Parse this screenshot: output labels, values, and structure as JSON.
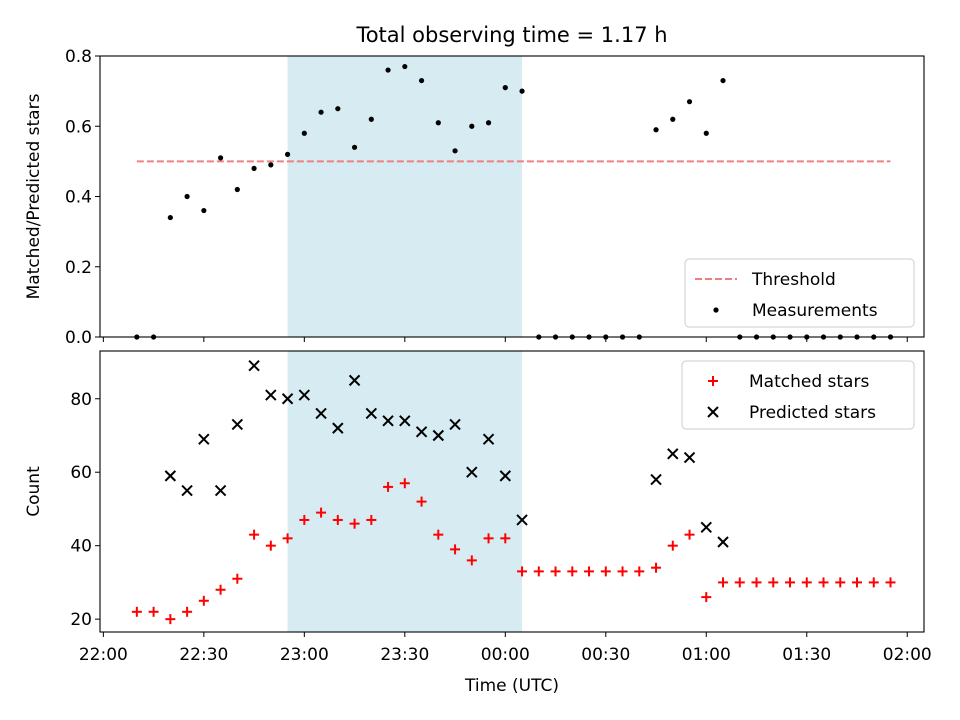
{
  "chart_data": [
    {
      "type": "scatter",
      "title": "Total observing time = 1.17 h",
      "xlabel": "",
      "ylabel": "Matched/Predicted stars",
      "ylim": [
        0,
        0.8
      ],
      "xlim": [
        "21:59",
        "02:05"
      ],
      "y_ticks": [
        "0.0",
        "0.2",
        "0.4",
        "0.6",
        "0.8"
      ],
      "shaded_interval": {
        "start": "22:55",
        "end": "00:05",
        "color": "#add8e6"
      },
      "legend": {
        "placement": "lower-right",
        "entries": [
          "Threshold",
          "Measurements"
        ]
      },
      "series": [
        {
          "name": "Threshold",
          "style": "dashed-line",
          "color": "#f08080",
          "points": [
            [
              "22:10",
              0.5
            ],
            [
              "01:55",
              0.5
            ]
          ]
        },
        {
          "name": "Measurements",
          "style": "dot",
          "color": "#000000",
          "points": [
            [
              "22:10",
              0.0
            ],
            [
              "22:15",
              0.0
            ],
            [
              "22:20",
              0.34
            ],
            [
              "22:25",
              0.4
            ],
            [
              "22:30",
              0.36
            ],
            [
              "22:35",
              0.51
            ],
            [
              "22:40",
              0.42
            ],
            [
              "22:45",
              0.48
            ],
            [
              "22:50",
              0.49
            ],
            [
              "22:55",
              0.52
            ],
            [
              "23:00",
              0.58
            ],
            [
              "23:05",
              0.64
            ],
            [
              "23:10",
              0.65
            ],
            [
              "23:15",
              0.54
            ],
            [
              "23:20",
              0.62
            ],
            [
              "23:25",
              0.76
            ],
            [
              "23:30",
              0.77
            ],
            [
              "23:35",
              0.73
            ],
            [
              "23:40",
              0.61
            ],
            [
              "23:45",
              0.53
            ],
            [
              "23:50",
              0.6
            ],
            [
              "23:55",
              0.61
            ],
            [
              "00:00",
              0.71
            ],
            [
              "00:05",
              0.7
            ],
            [
              "00:10",
              0.0
            ],
            [
              "00:15",
              0.0
            ],
            [
              "00:20",
              0.0
            ],
            [
              "00:25",
              0.0
            ],
            [
              "00:30",
              0.0
            ],
            [
              "00:35",
              0.0
            ],
            [
              "00:40",
              0.0
            ],
            [
              "00:45",
              0.59
            ],
            [
              "00:50",
              0.62
            ],
            [
              "00:55",
              0.67
            ],
            [
              "01:00",
              0.58
            ],
            [
              "01:05",
              0.73
            ],
            [
              "01:10",
              0.0
            ],
            [
              "01:15",
              0.0
            ],
            [
              "01:20",
              0.0
            ],
            [
              "01:25",
              0.0
            ],
            [
              "01:30",
              0.0
            ],
            [
              "01:35",
              0.0
            ],
            [
              "01:40",
              0.0
            ],
            [
              "01:45",
              0.0
            ],
            [
              "01:50",
              0.0
            ],
            [
              "01:55",
              0.0
            ]
          ]
        }
      ]
    },
    {
      "type": "scatter",
      "title": "",
      "xlabel": "Time (UTC)",
      "ylabel": "Count",
      "ylim": [
        16.5,
        93
      ],
      "xlim": [
        "21:59",
        "02:05"
      ],
      "y_ticks": [
        "20",
        "40",
        "60",
        "80"
      ],
      "x_ticks": [
        "22:00",
        "22:30",
        "23:00",
        "23:30",
        "00:00",
        "00:30",
        "01:00",
        "01:30",
        "02:00"
      ],
      "shaded_interval": {
        "start": "22:55",
        "end": "00:05",
        "color": "#add8e6"
      },
      "legend": {
        "placement": "top-right",
        "entries": [
          "Matched stars",
          "Predicted stars"
        ]
      },
      "series": [
        {
          "name": "Matched stars",
          "style": "plus",
          "color": "#ff0000",
          "points": [
            [
              "22:10",
              22
            ],
            [
              "22:15",
              22
            ],
            [
              "22:20",
              20
            ],
            [
              "22:25",
              22
            ],
            [
              "22:30",
              25
            ],
            [
              "22:35",
              28
            ],
            [
              "22:40",
              31
            ],
            [
              "22:45",
              43
            ],
            [
              "22:50",
              40
            ],
            [
              "22:55",
              42
            ],
            [
              "23:00",
              47
            ],
            [
              "23:05",
              49
            ],
            [
              "23:10",
              47
            ],
            [
              "23:15",
              46
            ],
            [
              "23:20",
              47
            ],
            [
              "23:25",
              56
            ],
            [
              "23:30",
              57
            ],
            [
              "23:35",
              52
            ],
            [
              "23:40",
              43
            ],
            [
              "23:45",
              39
            ],
            [
              "23:50",
              36
            ],
            [
              "23:55",
              42
            ],
            [
              "00:00",
              42
            ],
            [
              "00:05",
              33
            ],
            [
              "00:10",
              33
            ],
            [
              "00:15",
              33
            ],
            [
              "00:20",
              33
            ],
            [
              "00:25",
              33
            ],
            [
              "00:30",
              33
            ],
            [
              "00:35",
              33
            ],
            [
              "00:40",
              33
            ],
            [
              "00:45",
              34
            ],
            [
              "00:50",
              40
            ],
            [
              "00:55",
              43
            ],
            [
              "01:00",
              26
            ],
            [
              "01:05",
              30
            ],
            [
              "01:10",
              30
            ],
            [
              "01:15",
              30
            ],
            [
              "01:20",
              30
            ],
            [
              "01:25",
              30
            ],
            [
              "01:30",
              30
            ],
            [
              "01:35",
              30
            ],
            [
              "01:40",
              30
            ],
            [
              "01:45",
              30
            ],
            [
              "01:50",
              30
            ],
            [
              "01:55",
              30
            ]
          ]
        },
        {
          "name": "Predicted stars",
          "style": "x",
          "color": "#000000",
          "points": [
            [
              "22:20",
              59
            ],
            [
              "22:25",
              55
            ],
            [
              "22:30",
              69
            ],
            [
              "22:35",
              55
            ],
            [
              "22:40",
              73
            ],
            [
              "22:45",
              89
            ],
            [
              "22:50",
              81
            ],
            [
              "22:55",
              80
            ],
            [
              "23:00",
              81
            ],
            [
              "23:05",
              76
            ],
            [
              "23:10",
              72
            ],
            [
              "23:15",
              85
            ],
            [
              "23:20",
              76
            ],
            [
              "23:25",
              74
            ],
            [
              "23:30",
              74
            ],
            [
              "23:35",
              71
            ],
            [
              "23:40",
              70
            ],
            [
              "23:45",
              73
            ],
            [
              "23:50",
              60
            ],
            [
              "23:55",
              69
            ],
            [
              "00:00",
              59
            ],
            [
              "00:05",
              47
            ],
            [
              "00:45",
              58
            ],
            [
              "00:50",
              65
            ],
            [
              "00:55",
              64
            ],
            [
              "01:00",
              45
            ],
            [
              "01:05",
              41
            ]
          ]
        }
      ]
    }
  ]
}
